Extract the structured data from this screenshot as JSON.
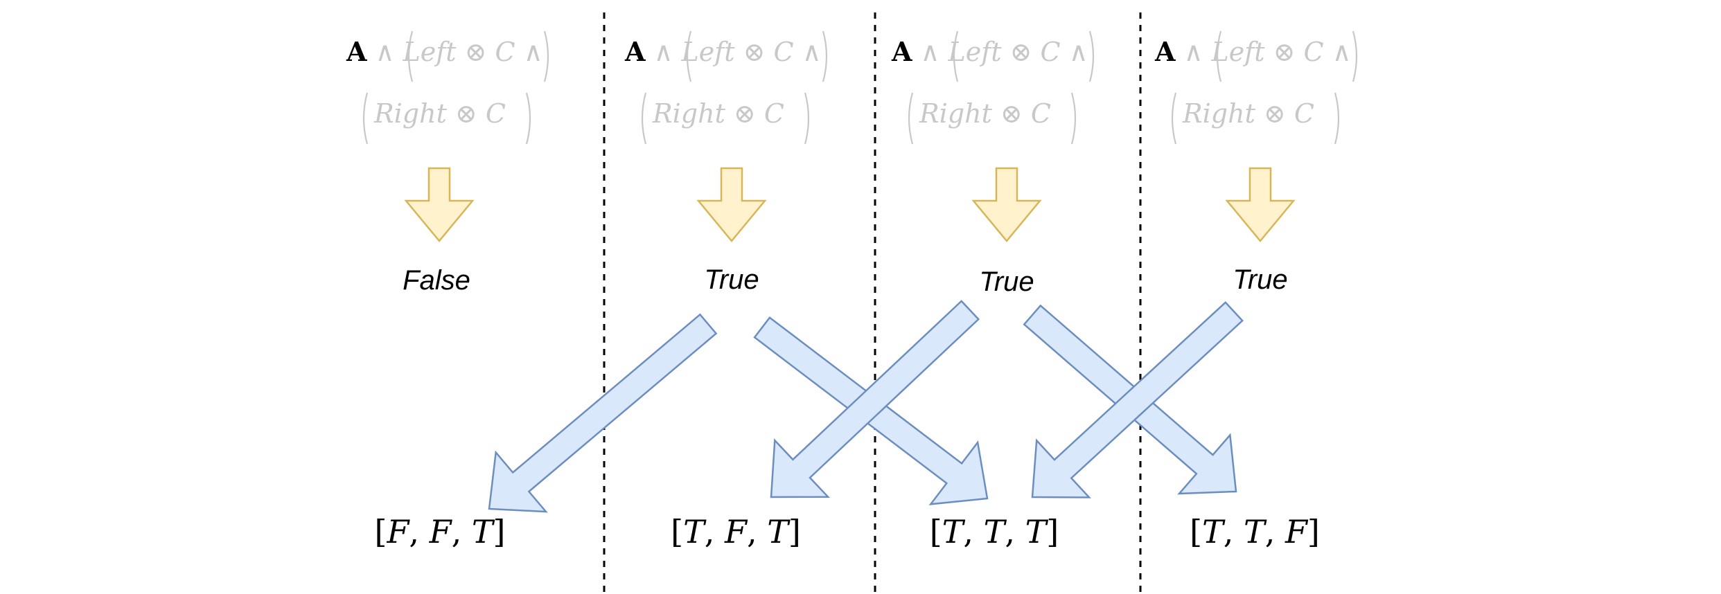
{
  "colors": {
    "formula_faded": "#c8c8c8",
    "formula_bold": "#000000",
    "yellow_fill": "#fff2cc",
    "yellow_stroke": "#d6b656",
    "blue_fill": "#dae8fc",
    "blue_stroke": "#6c8ebf",
    "divider": "#000000",
    "text": "#000000"
  },
  "formula": {
    "bold_symbol": "A",
    "and": "∧",
    "left": "Left",
    "right": "Right",
    "otimes": "⊗",
    "c": "C"
  },
  "columns": [
    {
      "result": "False",
      "bits": [
        "F",
        "F",
        "T"
      ]
    },
    {
      "result": "True",
      "bits": [
        "T",
        "F",
        "T"
      ]
    },
    {
      "result": "True",
      "bits": [
        "T",
        "T",
        "T"
      ]
    },
    {
      "result": "True",
      "bits": [
        "T",
        "T",
        "F"
      ]
    }
  ]
}
